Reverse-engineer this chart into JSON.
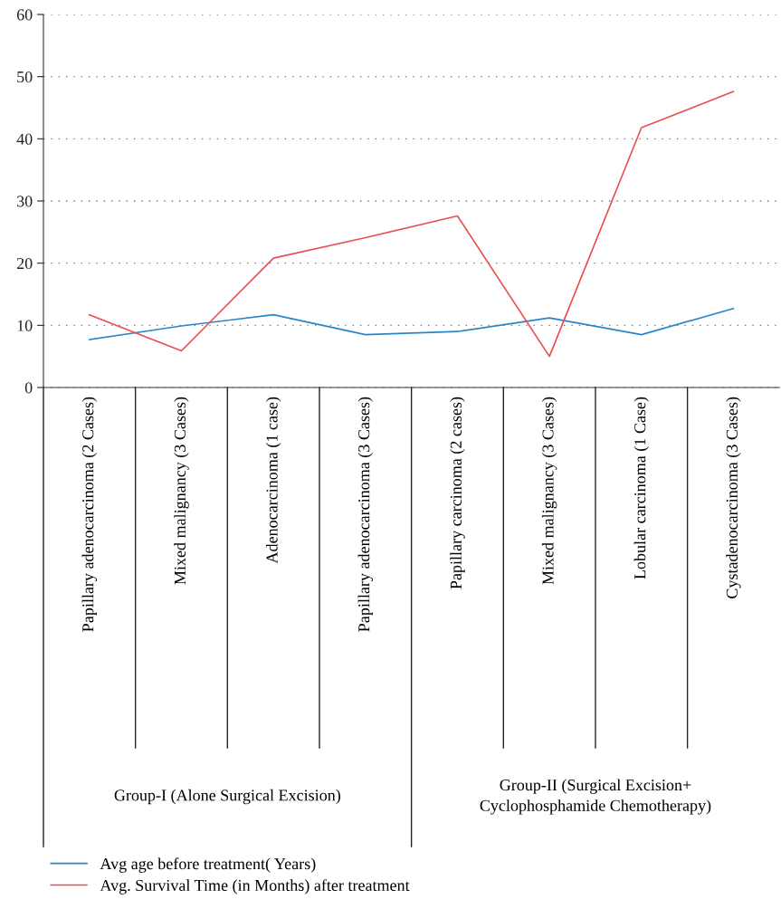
{
  "chart_data": {
    "type": "line",
    "categories": [
      "Papillary adenocarcinoma (2 Cases)",
      "Mixed malignancy (3 Cases)",
      "Adenocarcinoma (1 case)",
      "Papillary adenocarcinoma (3 Cases)",
      "Papillary carcinoma (2 cases)",
      "Mixed malignancy (3 Cases)",
      "Lobular carcinoma (1 Case)",
      "Cystadenocarcinoma (3 Cases)"
    ],
    "series": [
      {
        "name": "Avg age before treatment( Years)",
        "color": "#2a85c8",
        "values": [
          7.7,
          9.9,
          11.7,
          8.5,
          9.0,
          11.2,
          8.5,
          12.7
        ]
      },
      {
        "name": "Avg. Survival Time (in Months) after treatment",
        "color": "#e8504f",
        "values": [
          11.7,
          5.9,
          20.8,
          24.1,
          27.6,
          5.0,
          41.8,
          47.6
        ]
      }
    ],
    "annotations": [
      "Group-I (Alone Surgical Excision)",
      "Group-II (Surgical Excision+\nCyclophosphamide Chemotherapy)"
    ],
    "ylim": [
      0,
      60
    ],
    "yticks": [
      0,
      10,
      20,
      30,
      40,
      50,
      60
    ],
    "grid": "y",
    "legend": "bottom",
    "line_style": "solid",
    "marker": "none"
  }
}
